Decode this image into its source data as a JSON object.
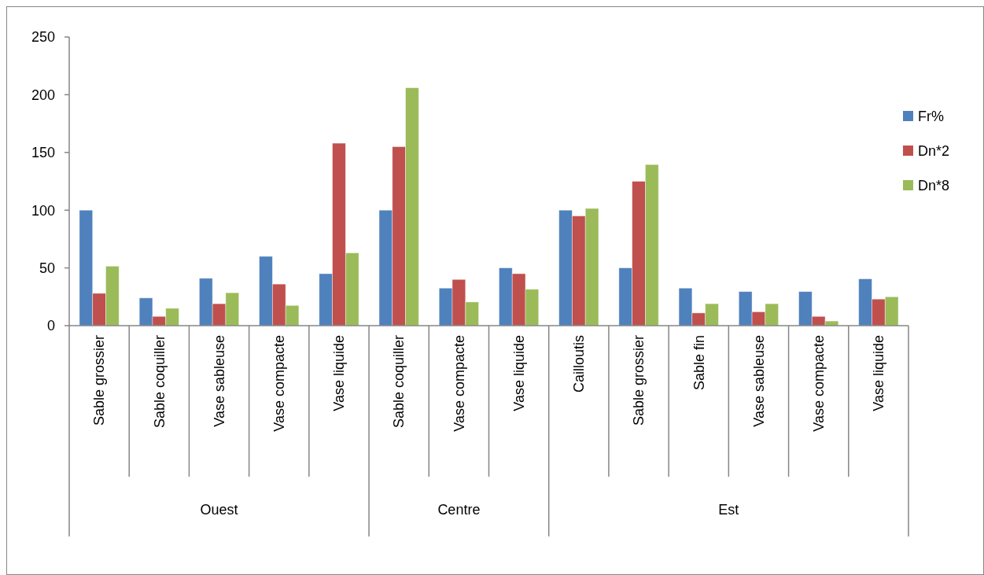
{
  "chart_data": {
    "type": "bar",
    "categories": [
      "Sable grossier",
      "Sable coquiller",
      "Vase sableuse",
      "Vase compacte",
      "Vase liquide",
      "Sable coquiller",
      "Vase compacte",
      "Vase liquide",
      "Cailloutis",
      "Sable grossier",
      "Sable fin",
      "Vase sableuse",
      "Vase compacte",
      "Vase liquide"
    ],
    "annotations": [
      "Ouest",
      "Centre",
      "Est"
    ],
    "series": [
      {
        "name": "Fr%",
        "color": "#4f81bd",
        "values": [
          100,
          24,
          41,
          60,
          45,
          100,
          32.5,
          50,
          100,
          50,
          32.5,
          29.5,
          29.5,
          40.5
        ]
      },
      {
        "name": "Dn*2",
        "color": "#c0504d",
        "values": [
          28,
          8,
          19,
          36,
          158,
          155,
          40,
          45,
          95,
          125,
          11,
          12,
          8,
          23
        ]
      },
      {
        "name": "Dn*8",
        "color": "#9bbb59",
        "values": [
          51.5,
          15,
          28.5,
          17.5,
          63,
          206,
          20.5,
          31.5,
          101.5,
          139.5,
          19,
          19,
          4,
          25
        ]
      }
    ],
    "ylim": [
      0,
      250
    ],
    "yticks": [
      0,
      50,
      100,
      150,
      200,
      250
    ],
    "grid": false,
    "legend": "right"
  }
}
